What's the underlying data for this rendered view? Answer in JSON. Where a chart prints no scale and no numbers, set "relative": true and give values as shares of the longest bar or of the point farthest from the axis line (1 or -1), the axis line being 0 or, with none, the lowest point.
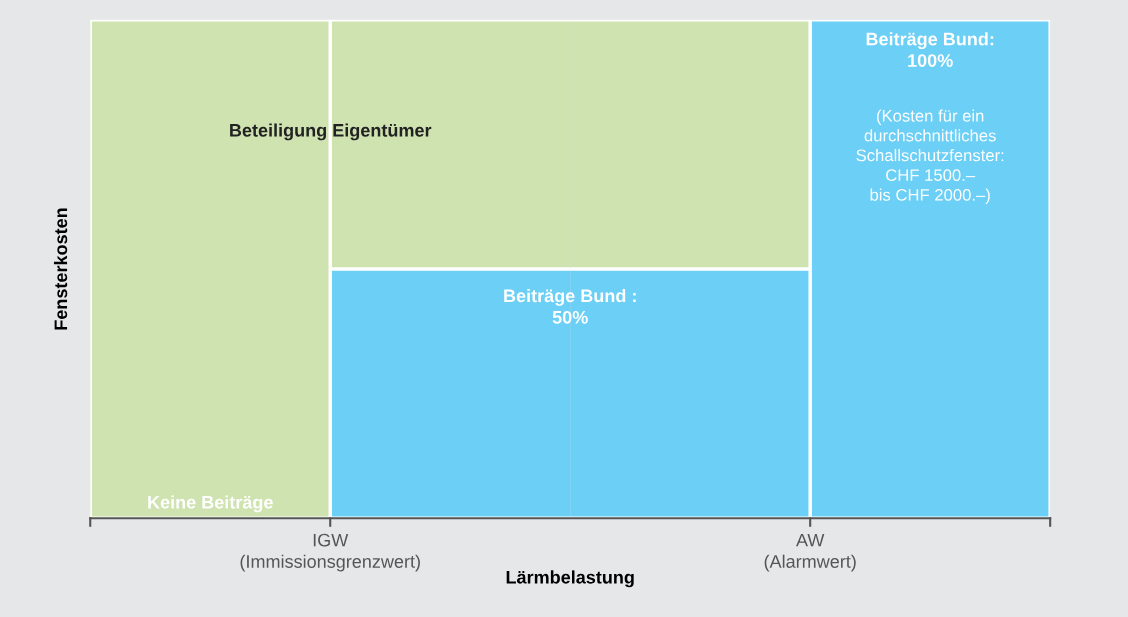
{
  "chart_data": {
    "type": "bar",
    "stacked": true,
    "relative": true,
    "xlabel": "Lärmbelastung",
    "ylabel": "Fensterkosten",
    "categories": [
      null,
      null,
      null,
      null
    ],
    "series": [
      {
        "color": "#6ccff6",
        "values": [
          0,
          0.5,
          0.5,
          1
        ]
      },
      {
        "color": "#cfe3b0",
        "values": [
          1,
          0.5,
          0.5,
          0
        ]
      }
    ],
    "annotations": [
      "Beteiligung Eigentümer",
      "Keine Beiträge",
      "Beiträge Bund :\n50%",
      "Beiträge Bund:\n100%",
      "(Kosten für ein\ndurchschnittliches\nSchallschutzfenster:\nCHF 1500.–\nbis CHF 2000.–)",
      "IGW\n(Immissionsgrenzwert)",
      "AW\n(Alarmwert)"
    ],
    "grid": false
  }
}
